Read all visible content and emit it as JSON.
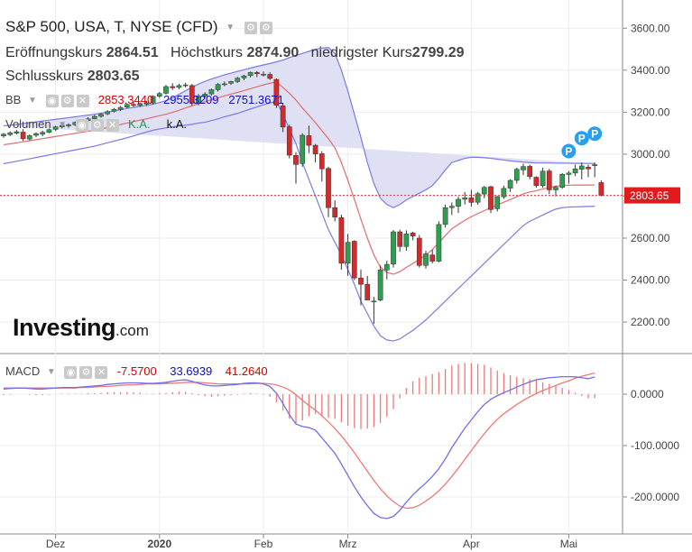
{
  "header": {
    "title": "S&P 500, USA, T, NYSE (CFD)",
    "open_label": "Eröffnungskurs",
    "open_value": "2864.51",
    "high_label": "Höchstkurs",
    "high_value": "2874.90",
    "low_label": "niedrigster Kurs",
    "low_value": "2799.29",
    "close_label": "Schlusskurs",
    "close_value": "2803.65"
  },
  "bb": {
    "label": "BB",
    "middle": "2853.3440",
    "upper": "2955.3209",
    "lower": "2751.3671"
  },
  "volume": {
    "label": "Volumen",
    "value1": "K.A.",
    "value2": "k.A."
  },
  "macd": {
    "label": "MACD",
    "hist_value": "-7.5700",
    "macd_value": "33.6939",
    "signal_value": "41.2640"
  },
  "logo": {
    "main": "Investing",
    "suffix": ".com"
  },
  "price_tag": "2803.65",
  "markers": [
    "P",
    "P",
    "P"
  ],
  "colors": {
    "up": "#2e9e4f",
    "down": "#d42a2a",
    "bb_fill": "#dfe0f4",
    "bb_band": "#7a7ae6",
    "bb_mid": "#e06c6c",
    "macd_line": "#6f6fe8",
    "signal_line": "#f07878",
    "marker": "#2a9ff0"
  },
  "chart_data": {
    "type": "candlestick",
    "x_ticks": [
      "Dez",
      "2020",
      "Feb",
      "Mrz",
      "Apr",
      "Mai"
    ],
    "price_axis": {
      "ylim": [
        2050,
        3700
      ],
      "ticks": [
        "3600.00",
        "3400.00",
        "3200.00",
        "3000.00",
        "2800.00",
        "2600.00",
        "2400.00",
        "2200.00"
      ]
    },
    "macd_axis": {
      "ylim": [
        -265,
        72
      ],
      "ticks": [
        "0.0000",
        "-100.0000",
        "-200.0000"
      ]
    },
    "ohlc": [
      {
        "o": 3087,
        "h": 3101,
        "l": 3078,
        "c": 3095
      },
      {
        "o": 3093,
        "h": 3109,
        "l": 3086,
        "c": 3102
      },
      {
        "o": 3100,
        "h": 3115,
        "l": 3094,
        "c": 3107
      },
      {
        "o": 3105,
        "h": 3119,
        "l": 3063,
        "c": 3073
      },
      {
        "o": 3072,
        "h": 3094,
        "l": 3066,
        "c": 3088
      },
      {
        "o": 3090,
        "h": 3104,
        "l": 3081,
        "c": 3098
      },
      {
        "o": 3095,
        "h": 3112,
        "l": 3086,
        "c": 3104
      },
      {
        "o": 3104,
        "h": 3121,
        "l": 3100,
        "c": 3117
      },
      {
        "o": 3118,
        "h": 3135,
        "l": 3111,
        "c": 3130
      },
      {
        "o": 3130,
        "h": 3143,
        "l": 3122,
        "c": 3137
      },
      {
        "o": 3135,
        "h": 3147,
        "l": 3126,
        "c": 3140
      },
      {
        "o": 3140,
        "h": 3156,
        "l": 3134,
        "c": 3151
      },
      {
        "o": 3150,
        "h": 3165,
        "l": 3143,
        "c": 3160
      },
      {
        "o": 3160,
        "h": 3176,
        "l": 3151,
        "c": 3168
      },
      {
        "o": 3169,
        "h": 3187,
        "l": 3161,
        "c": 3180
      },
      {
        "o": 3180,
        "h": 3195,
        "l": 3174,
        "c": 3190
      },
      {
        "o": 3192,
        "h": 3210,
        "l": 3186,
        "c": 3203
      },
      {
        "o": 3205,
        "h": 3220,
        "l": 3198,
        "c": 3214
      },
      {
        "o": 3213,
        "h": 3230,
        "l": 3206,
        "c": 3223
      },
      {
        "o": 3224,
        "h": 3242,
        "l": 3218,
        "c": 3237
      },
      {
        "o": 3237,
        "h": 3250,
        "l": 3225,
        "c": 3232
      },
      {
        "o": 3232,
        "h": 3246,
        "l": 3225,
        "c": 3241
      },
      {
        "o": 3238,
        "h": 3254,
        "l": 3230,
        "c": 3245
      },
      {
        "o": 3244,
        "h": 3280,
        "l": 3237,
        "c": 3275
      },
      {
        "o": 3276,
        "h": 3296,
        "l": 3268,
        "c": 3289
      },
      {
        "o": 3290,
        "h": 3330,
        "l": 3284,
        "c": 3322
      },
      {
        "o": 3322,
        "h": 3338,
        "l": 3306,
        "c": 3316
      },
      {
        "o": 3318,
        "h": 3335,
        "l": 3309,
        "c": 3327
      },
      {
        "o": 3328,
        "h": 3340,
        "l": 3318,
        "c": 3330
      },
      {
        "o": 3327,
        "h": 3334,
        "l": 3232,
        "c": 3243
      },
      {
        "o": 3243,
        "h": 3287,
        "l": 3232,
        "c": 3276
      },
      {
        "o": 3277,
        "h": 3295,
        "l": 3268,
        "c": 3286
      },
      {
        "o": 3287,
        "h": 3312,
        "l": 3280,
        "c": 3307
      },
      {
        "o": 3307,
        "h": 3338,
        "l": 3299,
        "c": 3332
      },
      {
        "o": 3333,
        "h": 3346,
        "l": 3323,
        "c": 3335
      },
      {
        "o": 3338,
        "h": 3350,
        "l": 3330,
        "c": 3346
      },
      {
        "o": 3346,
        "h": 3368,
        "l": 3339,
        "c": 3362
      },
      {
        "o": 3363,
        "h": 3378,
        "l": 3352,
        "c": 3373
      },
      {
        "o": 3374,
        "h": 3394,
        "l": 3366,
        "c": 3389
      },
      {
        "o": 3389,
        "h": 3396,
        "l": 3367,
        "c": 3383
      },
      {
        "o": 3378,
        "h": 3394,
        "l": 3370,
        "c": 3381
      },
      {
        "o": 3380,
        "h": 3390,
        "l": 3354,
        "c": 3361
      },
      {
        "o": 3356,
        "h": 3361,
        "l": 3220,
        "c": 3233
      },
      {
        "o": 3230,
        "h": 3240,
        "l": 3105,
        "c": 3129
      },
      {
        "o": 3130,
        "h": 3140,
        "l": 2980,
        "c": 2995
      },
      {
        "o": 2994,
        "h": 3010,
        "l": 2860,
        "c": 2951
      },
      {
        "o": 2955,
        "h": 3100,
        "l": 2940,
        "c": 3090
      },
      {
        "o": 3088,
        "h": 3136,
        "l": 3005,
        "c": 3042
      },
      {
        "o": 3042,
        "h": 3048,
        "l": 2960,
        "c": 3001
      },
      {
        "o": 3002,
        "h": 3014,
        "l": 2870,
        "c": 2930
      },
      {
        "o": 2932,
        "h": 2940,
        "l": 2700,
        "c": 2745
      },
      {
        "o": 2745,
        "h": 2780,
        "l": 2680,
        "c": 2700
      },
      {
        "o": 2698,
        "h": 2712,
        "l": 2450,
        "c": 2480
      },
      {
        "o": 2480,
        "h": 2620,
        "l": 2420,
        "c": 2580
      },
      {
        "o": 2585,
        "h": 2590,
        "l": 2400,
        "c": 2410
      },
      {
        "o": 2410,
        "h": 2450,
        "l": 2280,
        "c": 2380
      },
      {
        "o": 2380,
        "h": 2420,
        "l": 2310,
        "c": 2305
      },
      {
        "o": 2300,
        "h": 2320,
        "l": 2191,
        "c": 2300
      },
      {
        "o": 2305,
        "h": 2470,
        "l": 2300,
        "c": 2449
      },
      {
        "o": 2448,
        "h": 2492,
        "l": 2404,
        "c": 2475
      },
      {
        "o": 2476,
        "h": 2638,
        "l": 2460,
        "c": 2630
      },
      {
        "o": 2630,
        "h": 2640,
        "l": 2535,
        "c": 2560
      },
      {
        "o": 2560,
        "h": 2637,
        "l": 2540,
        "c": 2620
      },
      {
        "o": 2625,
        "h": 2630,
        "l": 2590,
        "c": 2610
      },
      {
        "o": 2600,
        "h": 2615,
        "l": 2460,
        "c": 2470
      },
      {
        "o": 2470,
        "h": 2540,
        "l": 2455,
        "c": 2525
      },
      {
        "o": 2520,
        "h": 2545,
        "l": 2480,
        "c": 2490
      },
      {
        "o": 2490,
        "h": 2680,
        "l": 2485,
        "c": 2665
      },
      {
        "o": 2665,
        "h": 2760,
        "l": 2650,
        "c": 2745
      },
      {
        "o": 2745,
        "h": 2770,
        "l": 2710,
        "c": 2752
      },
      {
        "o": 2752,
        "h": 2797,
        "l": 2720,
        "c": 2785
      },
      {
        "o": 2785,
        "h": 2820,
        "l": 2760,
        "c": 2792
      },
      {
        "o": 2792,
        "h": 2830,
        "l": 2750,
        "c": 2770
      },
      {
        "o": 2771,
        "h": 2820,
        "l": 2759,
        "c": 2812
      },
      {
        "o": 2810,
        "h": 2848,
        "l": 2790,
        "c": 2842
      },
      {
        "o": 2845,
        "h": 2850,
        "l": 2720,
        "c": 2736
      },
      {
        "o": 2740,
        "h": 2800,
        "l": 2727,
        "c": 2798
      },
      {
        "o": 2797,
        "h": 2850,
        "l": 2787,
        "c": 2837
      },
      {
        "o": 2838,
        "h": 2880,
        "l": 2820,
        "c": 2875
      },
      {
        "o": 2875,
        "h": 2935,
        "l": 2860,
        "c": 2928
      },
      {
        "o": 2925,
        "h": 2955,
        "l": 2900,
        "c": 2941
      },
      {
        "o": 2942,
        "h": 2950,
        "l": 2880,
        "c": 2893
      },
      {
        "o": 2890,
        "h": 2895,
        "l": 2840,
        "c": 2850
      },
      {
        "o": 2850,
        "h": 2935,
        "l": 2840,
        "c": 2919
      },
      {
        "o": 2920,
        "h": 2930,
        "l": 2810,
        "c": 2830
      },
      {
        "o": 2830,
        "h": 2850,
        "l": 2800,
        "c": 2842
      },
      {
        "o": 2842,
        "h": 2910,
        "l": 2835,
        "c": 2904
      },
      {
        "o": 2903,
        "h": 2920,
        "l": 2860,
        "c": 2910
      },
      {
        "o": 2910,
        "h": 2950,
        "l": 2895,
        "c": 2930
      },
      {
        "o": 2928,
        "h": 2960,
        "l": 2880,
        "c": 2944
      },
      {
        "o": 2938,
        "h": 2950,
        "l": 2890,
        "c": 2930
      },
      {
        "o": 2945,
        "h": 2960,
        "l": 2890,
        "c": 2950
      },
      {
        "o": 2864.51,
        "h": 2874.9,
        "l": 2799.29,
        "c": 2803.65
      }
    ],
    "bb_upper": [
      3135,
      3138,
      3142,
      3146,
      3150,
      3154,
      3158,
      3162,
      3166,
      3170,
      3174,
      3178,
      3182,
      3186,
      3190,
      3195,
      3200,
      3206,
      3212,
      3218,
      3223,
      3228,
      3232,
      3238,
      3246,
      3255,
      3268,
      3285,
      3302,
      3318,
      3334,
      3347,
      3358,
      3368,
      3378,
      3386,
      3394,
      3402,
      3410,
      3418,
      3425,
      3432,
      3440,
      3448,
      3460,
      3470,
      3480,
      3490,
      3500,
      3505,
      3508,
      3480,
      3400,
      3300,
      3190,
      3080,
      2960,
      2860,
      2790,
      2760,
      2745,
      2760,
      2782,
      2798,
      2814,
      2830,
      2850,
      2885,
      2925,
      2960,
      2970,
      2980,
      2985,
      2985,
      2983,
      2980,
      2976,
      2972,
      2968,
      2965,
      2962,
      2960,
      2958,
      2958,
      2958,
      2957,
      2957,
      2957,
      2956,
      2956,
      2956,
      2955.32
    ],
    "bb_lower": [
      2955,
      2960,
      2966,
      2972,
      2978,
      2984,
      2990,
      2996,
      3002,
      3008,
      3014,
      3020,
      3026,
      3032,
      3038,
      3046,
      3054,
      3062,
      3070,
      3078,
      3087,
      3096,
      3105,
      3114,
      3120,
      3125,
      3130,
      3134,
      3138,
      3142,
      3148,
      3152,
      3160,
      3168,
      3178,
      3186,
      3194,
      3205,
      3215,
      3225,
      3235,
      3245,
      3250,
      3190,
      3120,
      3050,
      2960,
      2880,
      2800,
      2720,
      2640,
      2580,
      2520,
      2450,
      2380,
      2300,
      2240,
      2180,
      2135,
      2115,
      2110,
      2120,
      2140,
      2160,
      2185,
      2210,
      2240,
      2270,
      2300,
      2330,
      2360,
      2390,
      2420,
      2450,
      2480,
      2510,
      2540,
      2570,
      2600,
      2630,
      2660,
      2680,
      2695,
      2710,
      2725,
      2738,
      2745,
      2748,
      2749,
      2750,
      2751,
      2751.37
    ],
    "bb_middle": [
      3045,
      3049,
      3054,
      3059,
      3064,
      3069,
      3074,
      3079,
      3084,
      3089,
      3094,
      3099,
      3104,
      3109,
      3114,
      3120,
      3127,
      3134,
      3141,
      3148,
      3155,
      3162,
      3168,
      3176,
      3183,
      3190,
      3199,
      3209,
      3220,
      3230,
      3241,
      3250,
      3259,
      3268,
      3278,
      3286,
      3294,
      3303,
      3312,
      3321,
      3330,
      3338,
      3344,
      3318,
      3290,
      3258,
      3220,
      3185,
      3150,
      3112,
      3074,
      3030,
      2960,
      2875,
      2785,
      2690,
      2600,
      2520,
      2462,
      2437,
      2428,
      2440,
      2461,
      2479,
      2499,
      2520,
      2545,
      2578,
      2612,
      2645,
      2665,
      2685,
      2702,
      2717,
      2731,
      2745,
      2758,
      2771,
      2784,
      2797,
      2811,
      2820,
      2826,
      2834,
      2841,
      2847,
      2851,
      2852,
      2853,
      2853,
      2853,
      2853.34
    ],
    "macd_line": [
      10,
      11,
      12,
      12,
      11,
      10,
      10,
      11,
      12,
      13,
      13,
      13,
      14,
      15,
      16,
      17,
      19,
      20,
      21,
      22,
      22,
      22,
      21,
      21,
      22,
      23,
      25,
      27,
      28,
      25,
      21,
      18,
      16,
      16,
      17,
      18,
      19,
      21,
      22,
      22,
      20,
      15,
      2,
      -18,
      -40,
      -58,
      -63,
      -65,
      -70,
      -85,
      -100,
      -115,
      -136,
      -158,
      -180,
      -200,
      -217,
      -232,
      -240,
      -242,
      -238,
      -226,
      -210,
      -196,
      -184,
      -173,
      -160,
      -145,
      -126,
      -104,
      -85,
      -66,
      -50,
      -34,
      -20,
      -10,
      -3,
      3,
      8,
      14,
      19,
      24,
      28,
      30,
      32,
      33,
      34,
      34,
      33.7,
      32,
      30,
      33.69
    ],
    "signal_line": [
      12,
      12,
      12,
      12,
      12,
      12,
      12,
      12,
      12,
      12,
      12,
      12,
      13,
      13,
      14,
      15,
      15,
      16,
      17,
      18,
      18,
      19,
      20,
      20,
      20,
      21,
      21,
      22,
      23,
      23,
      23,
      22,
      21,
      20,
      20,
      20,
      20,
      20,
      20,
      21,
      21,
      20,
      18,
      14,
      8,
      -1,
      -12,
      -22,
      -31,
      -42,
      -54,
      -67,
      -81,
      -97,
      -114,
      -132,
      -150,
      -168,
      -184,
      -198,
      -209,
      -218,
      -222,
      -221,
      -216,
      -208,
      -199,
      -188,
      -175,
      -160,
      -144,
      -127,
      -110,
      -93,
      -77,
      -62,
      -49,
      -38,
      -29,
      -20,
      -12,
      -5,
      1,
      7,
      12,
      17,
      22,
      26,
      31,
      35,
      38,
      41.26
    ]
  }
}
